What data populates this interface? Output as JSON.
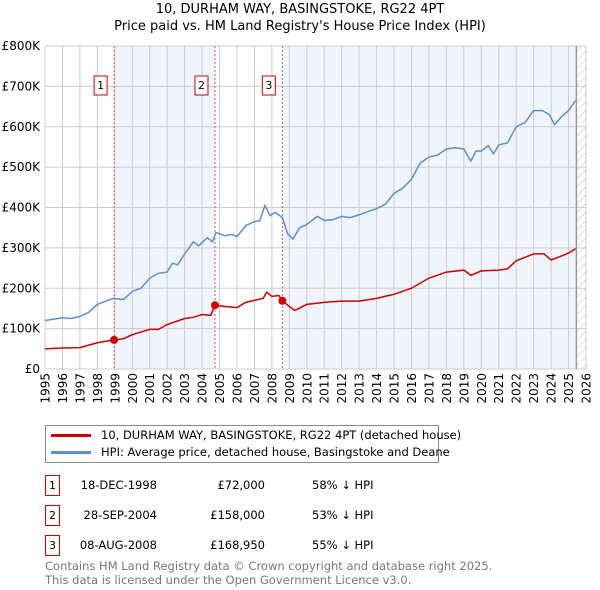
{
  "chart_data": {
    "type": "line",
    "title": "10, DURHAM WAY, BASINGSTOKE, RG22 4PT",
    "subtitle": "Price paid vs. HM Land Registry's House Price Index (HPI)",
    "xlim": [
      1995,
      2026
    ],
    "ylim": [
      0,
      800000
    ],
    "x_ticks": [
      "1995",
      "1996",
      "1997",
      "1998",
      "1999",
      "2000",
      "2001",
      "2002",
      "2003",
      "2004",
      "2005",
      "2006",
      "2007",
      "2008",
      "2009",
      "2010",
      "2011",
      "2012",
      "2013",
      "2014",
      "2015",
      "2016",
      "2017",
      "2018",
      "2019",
      "2020",
      "2021",
      "2022",
      "2023",
      "2024",
      "2025",
      "2026"
    ],
    "y_ticks": [
      {
        "v": 0,
        "label": "£0"
      },
      {
        "v": 100000,
        "label": "£100K"
      },
      {
        "v": 200000,
        "label": "£200K"
      },
      {
        "v": 300000,
        "label": "£300K"
      },
      {
        "v": 400000,
        "label": "£400K"
      },
      {
        "v": 500000,
        "label": "£500K"
      },
      {
        "v": 600000,
        "label": "£600K"
      },
      {
        "v": 700000,
        "label": "£700K"
      },
      {
        "v": 800000,
        "label": "£800K"
      }
    ],
    "grid": true,
    "series": [
      {
        "name": "10, DURHAM WAY, BASINGSTOKE, RG22 4PT (detached house)",
        "color": "#cc0000",
        "points": [
          [
            1995,
            50
          ],
          [
            1996,
            52
          ],
          [
            1997,
            53
          ],
          [
            1998,
            65
          ],
          [
            1998.96,
            72
          ],
          [
            1999.5,
            75
          ],
          [
            2000,
            85
          ],
          [
            2001,
            98
          ],
          [
            2001.5,
            98
          ],
          [
            2002,
            110
          ],
          [
            2003,
            125
          ],
          [
            2003.5,
            128
          ],
          [
            2004,
            135
          ],
          [
            2004.5,
            133
          ],
          [
            2004.74,
            158
          ],
          [
            2005.3,
            155
          ],
          [
            2006,
            152
          ],
          [
            2006.5,
            165
          ],
          [
            2007,
            170
          ],
          [
            2007.5,
            175
          ],
          [
            2007.7,
            190
          ],
          [
            2008,
            180
          ],
          [
            2008.4,
            182
          ],
          [
            2008.6,
            169
          ],
          [
            2009,
            155
          ],
          [
            2009.3,
            145
          ],
          [
            2010,
            160
          ],
          [
            2011,
            165
          ],
          [
            2012,
            168
          ],
          [
            2013,
            168
          ],
          [
            2014,
            175
          ],
          [
            2015,
            185
          ],
          [
            2016,
            200
          ],
          [
            2017,
            225
          ],
          [
            2018,
            240
          ],
          [
            2019,
            245
          ],
          [
            2019.4,
            232
          ],
          [
            2020,
            243
          ],
          [
            2021,
            245
          ],
          [
            2021.5,
            248
          ],
          [
            2022,
            268
          ],
          [
            2023,
            285
          ],
          [
            2023.6,
            285
          ],
          [
            2024,
            270
          ],
          [
            2024.6,
            280
          ],
          [
            2025,
            287
          ],
          [
            2025.4,
            298
          ]
        ]
      },
      {
        "name": "HPI: Average price, detached house, Basingstoke and Deane",
        "color": "#5b8fd4",
        "points": [
          [
            1995,
            120
          ],
          [
            1996,
            127
          ],
          [
            1996.5,
            125
          ],
          [
            1997,
            130
          ],
          [
            1997.5,
            140
          ],
          [
            1998,
            160
          ],
          [
            1998.9,
            175
          ],
          [
            1999.5,
            172
          ],
          [
            2000,
            192
          ],
          [
            2000.5,
            200
          ],
          [
            2001,
            225
          ],
          [
            2001.5,
            237
          ],
          [
            2002,
            240
          ],
          [
            2002.3,
            262
          ],
          [
            2002.6,
            258
          ],
          [
            2003,
            285
          ],
          [
            2003.5,
            315
          ],
          [
            2003.8,
            305
          ],
          [
            2004.3,
            325
          ],
          [
            2004.6,
            315
          ],
          [
            2004.8,
            338
          ],
          [
            2005.3,
            330
          ],
          [
            2005.7,
            333
          ],
          [
            2006,
            328
          ],
          [
            2006.5,
            355
          ],
          [
            2007,
            365
          ],
          [
            2007.3,
            367
          ],
          [
            2007.6,
            405
          ],
          [
            2007.9,
            380
          ],
          [
            2008.2,
            388
          ],
          [
            2008.6,
            375
          ],
          [
            2008.9,
            335
          ],
          [
            2009.2,
            322
          ],
          [
            2009.6,
            350
          ],
          [
            2010,
            358
          ],
          [
            2010.6,
            378
          ],
          [
            2011,
            368
          ],
          [
            2011.5,
            370
          ],
          [
            2012,
            378
          ],
          [
            2012.5,
            375
          ],
          [
            2013,
            382
          ],
          [
            2013.5,
            390
          ],
          [
            2014,
            397
          ],
          [
            2014.5,
            408
          ],
          [
            2015,
            435
          ],
          [
            2015.5,
            448
          ],
          [
            2016,
            470
          ],
          [
            2016.5,
            510
          ],
          [
            2017,
            525
          ],
          [
            2017.5,
            530
          ],
          [
            2018,
            545
          ],
          [
            2018.5,
            548
          ],
          [
            2019,
            545
          ],
          [
            2019.4,
            515
          ],
          [
            2019.7,
            540
          ],
          [
            2020,
            540
          ],
          [
            2020.4,
            553
          ],
          [
            2020.7,
            533
          ],
          [
            2021,
            555
          ],
          [
            2021.5,
            560
          ],
          [
            2022,
            600
          ],
          [
            2022.5,
            610
          ],
          [
            2023,
            640
          ],
          [
            2023.5,
            640
          ],
          [
            2023.9,
            630
          ],
          [
            2024.2,
            605
          ],
          [
            2024.6,
            625
          ],
          [
            2025,
            640
          ],
          [
            2025.4,
            665
          ]
        ]
      }
    ],
    "sales": [
      {
        "id": "1",
        "x": 1998.96,
        "value": 72000,
        "date": "18-DEC-1998",
        "price": "£72,000",
        "hpi": "58% ↓ HPI"
      },
      {
        "id": "2",
        "x": 2004.74,
        "value": 158000,
        "date": "28-SEP-2004",
        "price": "£158,000",
        "hpi": "53% ↓ HPI"
      },
      {
        "id": "3",
        "x": 2008.6,
        "value": 168950,
        "date": "08-AUG-2008",
        "price": "£168,950",
        "hpi": "55% ↓ HPI"
      }
    ],
    "forecast_start": 2025.45
  },
  "footer": [
    "Contains HM Land Registry data © Crown copyright and database right 2025.",
    "This data is licensed under the Open Government Licence v3.0."
  ]
}
